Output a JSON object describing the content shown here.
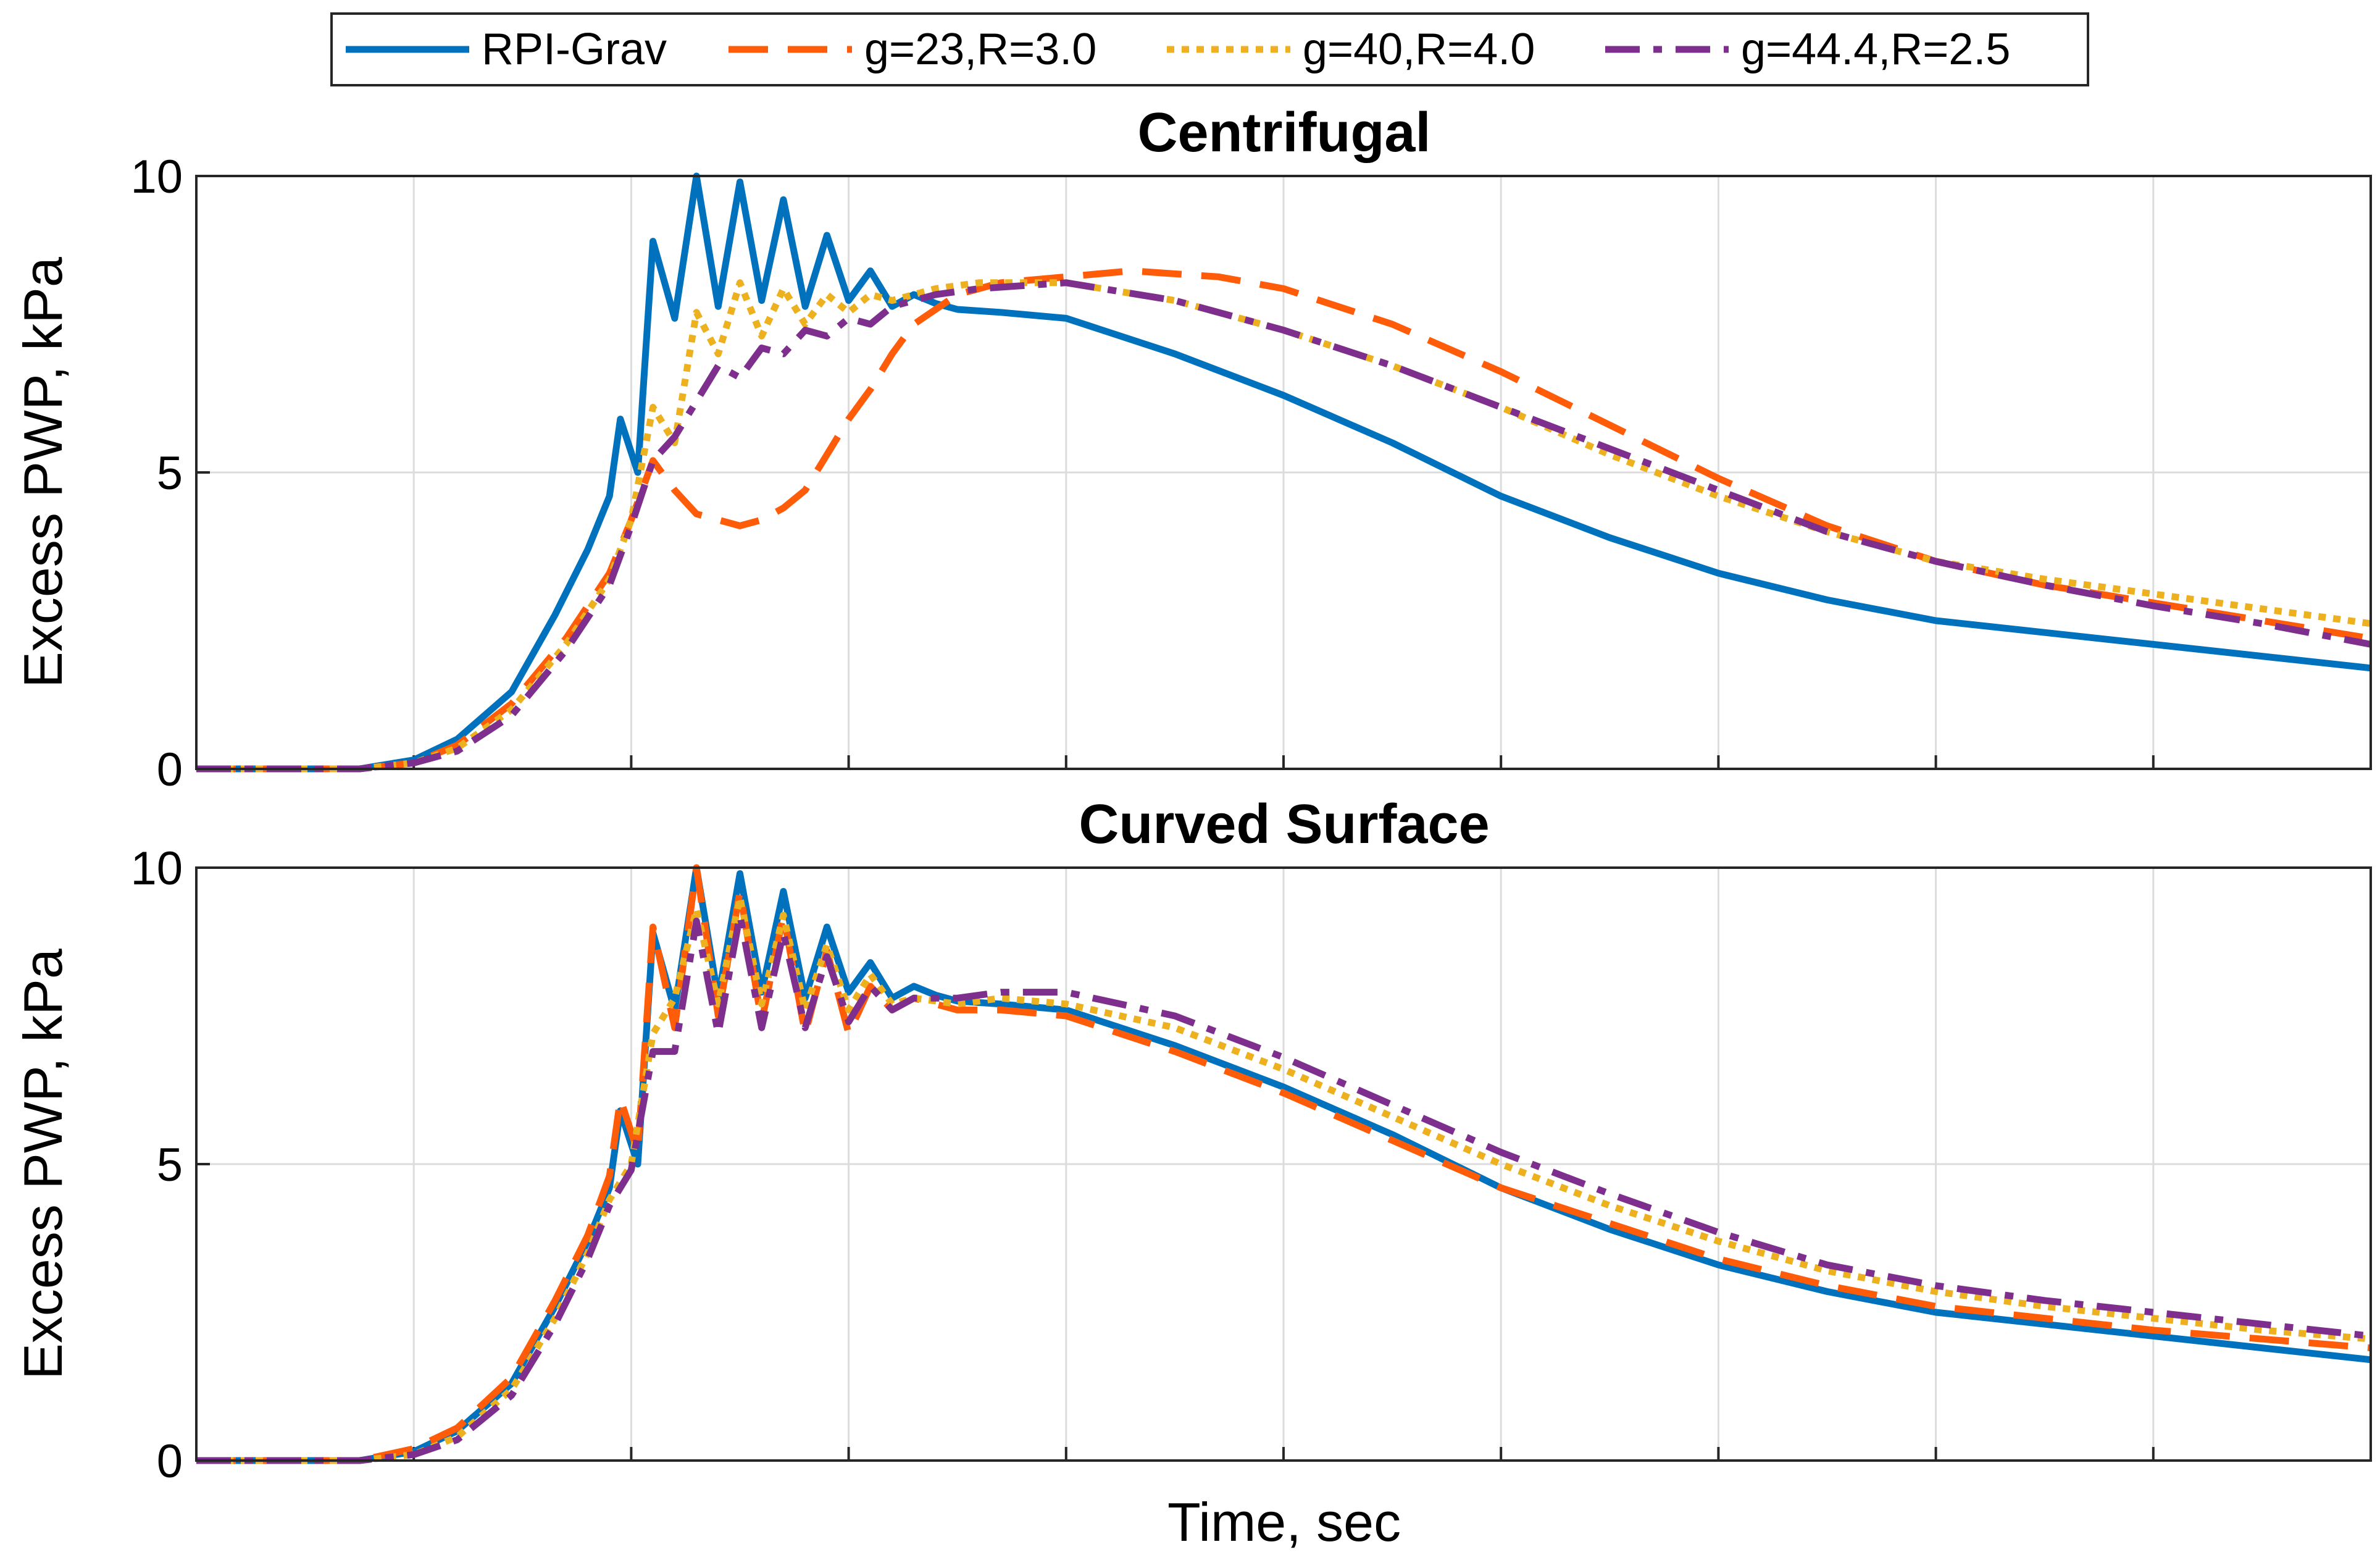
{
  "chart_data": [
    {
      "type": "line",
      "title": "Centrifugal",
      "xlabel": "",
      "ylabel": "Excess PWP, kPa",
      "xlim": [
        0,
        10
      ],
      "ylim": [
        0,
        10
      ],
      "xticks": [
        1,
        2,
        3,
        4,
        5,
        6,
        7,
        8,
        9
      ],
      "yticks": [
        {
          "value": 0,
          "label": "0"
        },
        {
          "value": 5,
          "label": "5"
        },
        {
          "value": 10,
          "label": "10"
        }
      ],
      "grid": true,
      "series": [
        {
          "name": "RPI-Grav",
          "color": "#0072BD",
          "dash": "solid",
          "x": [
            0,
            0.75,
            1.0,
            1.2,
            1.45,
            1.65,
            1.8,
            1.9,
            1.95,
            2.03,
            2.1,
            2.2,
            2.3,
            2.4,
            2.5,
            2.6,
            2.7,
            2.8,
            2.9,
            3.0,
            3.1,
            3.2,
            3.3,
            3.4,
            3.5,
            3.7,
            4.0,
            4.5,
            5.0,
            5.5,
            6.0,
            6.5,
            7.0,
            7.5,
            8.0,
            8.5,
            9.0,
            9.5,
            10.0
          ],
          "y": [
            0,
            0,
            0.15,
            0.5,
            1.3,
            2.6,
            3.7,
            4.6,
            5.9,
            5.0,
            8.9,
            7.6,
            10.0,
            7.8,
            9.9,
            7.9,
            9.6,
            7.8,
            9.0,
            7.9,
            8.4,
            7.8,
            8.0,
            7.85,
            7.75,
            7.7,
            7.6,
            7.0,
            6.3,
            5.5,
            4.6,
            3.9,
            3.3,
            2.85,
            2.5,
            2.3,
            2.1,
            1.9,
            1.7
          ]
        },
        {
          "name": "g=23,R=3.0",
          "color": "#FF5C0A",
          "dash": "long-dash",
          "x": [
            0,
            0.75,
            1.0,
            1.2,
            1.45,
            1.7,
            1.9,
            2.0,
            2.1,
            2.2,
            2.3,
            2.4,
            2.5,
            2.6,
            2.7,
            2.8,
            2.9,
            3.0,
            3.1,
            3.2,
            3.3,
            3.5,
            3.7,
            4.0,
            4.3,
            4.7,
            5.0,
            5.5,
            6.0,
            6.5,
            7.0,
            7.5,
            8.0,
            8.5,
            9.0,
            9.5,
            10.0
          ],
          "y": [
            0,
            0,
            0.1,
            0.4,
            1.1,
            2.2,
            3.3,
            4.2,
            5.2,
            4.7,
            4.3,
            4.2,
            4.1,
            4.2,
            4.4,
            4.7,
            5.3,
            5.9,
            6.4,
            7.0,
            7.5,
            8.0,
            8.2,
            8.3,
            8.4,
            8.3,
            8.1,
            7.5,
            6.7,
            5.8,
            4.9,
            4.1,
            3.5,
            3.1,
            2.8,
            2.5,
            2.2
          ]
        },
        {
          "name": "g=40,R=4.0",
          "color": "#EDB120",
          "dash": "dotted",
          "x": [
            0,
            0.75,
            1.0,
            1.2,
            1.45,
            1.7,
            1.9,
            2.0,
            2.1,
            2.2,
            2.3,
            2.4,
            2.5,
            2.6,
            2.7,
            2.8,
            2.9,
            3.0,
            3.1,
            3.2,
            3.4,
            3.6,
            4.0,
            4.5,
            5.0,
            5.5,
            6.0,
            6.5,
            7.0,
            7.5,
            8.0,
            8.5,
            9.0,
            9.5,
            10.0
          ],
          "y": [
            0,
            0,
            0.1,
            0.35,
            1.0,
            2.1,
            3.2,
            4.2,
            6.1,
            5.5,
            7.7,
            7.0,
            8.2,
            7.3,
            8.1,
            7.5,
            8.0,
            7.7,
            8.0,
            7.9,
            8.1,
            8.2,
            8.2,
            7.9,
            7.4,
            6.8,
            6.1,
            5.3,
            4.6,
            4.0,
            3.5,
            3.2,
            2.95,
            2.7,
            2.45
          ]
        },
        {
          "name": "g=44.4,R=2.5",
          "color": "#7E2F8E",
          "dash": "dash-dot",
          "x": [
            0,
            0.75,
            1.0,
            1.2,
            1.45,
            1.7,
            1.9,
            2.0,
            2.1,
            2.2,
            2.3,
            2.4,
            2.5,
            2.6,
            2.7,
            2.8,
            2.9,
            3.0,
            3.1,
            3.2,
            3.4,
            3.6,
            4.0,
            4.5,
            5.0,
            5.5,
            6.0,
            6.5,
            7.0,
            7.5,
            8.0,
            8.5,
            9.0,
            9.5,
            10.0
          ],
          "y": [
            0,
            0,
            0.1,
            0.3,
            0.9,
            2.0,
            3.1,
            4.1,
            5.2,
            5.6,
            6.2,
            6.8,
            6.6,
            7.1,
            7.0,
            7.4,
            7.3,
            7.6,
            7.5,
            7.8,
            8.0,
            8.1,
            8.2,
            7.9,
            7.4,
            6.8,
            6.1,
            5.4,
            4.7,
            4.0,
            3.5,
            3.1,
            2.75,
            2.45,
            2.1
          ]
        }
      ]
    },
    {
      "type": "line",
      "title": "Curved Surface",
      "xlabel": "Time, sec",
      "ylabel": "Excess PWP, kPa",
      "xlim": [
        0,
        10
      ],
      "ylim": [
        0,
        10
      ],
      "xticks": [
        1,
        2,
        3,
        4,
        5,
        6,
        7,
        8,
        9
      ],
      "yticks": [
        {
          "value": 0,
          "label": "0"
        },
        {
          "value": 5,
          "label": "5"
        },
        {
          "value": 10,
          "label": "10"
        }
      ],
      "grid": true,
      "series": [
        {
          "name": "RPI-Grav",
          "color": "#0072BD",
          "dash": "solid",
          "x": [
            0,
            0.75,
            1.0,
            1.2,
            1.45,
            1.65,
            1.8,
            1.9,
            1.95,
            2.03,
            2.1,
            2.2,
            2.3,
            2.4,
            2.5,
            2.6,
            2.7,
            2.8,
            2.9,
            3.0,
            3.1,
            3.2,
            3.3,
            3.4,
            3.5,
            3.7,
            4.0,
            4.5,
            5.0,
            5.5,
            6.0,
            6.5,
            7.0,
            7.5,
            8.0,
            8.5,
            9.0,
            9.5,
            10.0
          ],
          "y": [
            0,
            0,
            0.15,
            0.5,
            1.3,
            2.6,
            3.7,
            4.6,
            5.9,
            5.0,
            8.9,
            7.6,
            10.0,
            7.8,
            9.9,
            7.9,
            9.6,
            7.8,
            9.0,
            7.9,
            8.4,
            7.8,
            8.0,
            7.85,
            7.75,
            7.7,
            7.6,
            7.0,
            6.3,
            5.5,
            4.6,
            3.9,
            3.3,
            2.85,
            2.5,
            2.3,
            2.1,
            1.9,
            1.7
          ]
        },
        {
          "name": "g=23,R=3.0",
          "color": "#FF5C0A",
          "dash": "long-dash",
          "x": [
            0,
            0.75,
            1.0,
            1.2,
            1.45,
            1.65,
            1.8,
            1.9,
            1.95,
            2.03,
            2.1,
            2.2,
            2.3,
            2.4,
            2.5,
            2.6,
            2.7,
            2.8,
            2.9,
            3.0,
            3.1,
            3.2,
            3.3,
            3.5,
            3.7,
            4.0,
            4.5,
            5.0,
            5.5,
            6.0,
            6.5,
            7.0,
            7.5,
            8.0,
            8.5,
            9.0,
            9.5,
            10.0
          ],
          "y": [
            0,
            0,
            0.2,
            0.55,
            1.4,
            2.7,
            3.8,
            4.8,
            6.1,
            5.2,
            9.0,
            7.3,
            10.0,
            7.5,
            9.6,
            7.4,
            9.2,
            7.2,
            8.6,
            7.2,
            8.0,
            7.6,
            7.8,
            7.6,
            7.6,
            7.5,
            6.9,
            6.2,
            5.4,
            4.6,
            4.0,
            3.4,
            2.95,
            2.6,
            2.4,
            2.2,
            2.05,
            1.9
          ]
        },
        {
          "name": "g=40,R=4.0",
          "color": "#EDB120",
          "dash": "dotted",
          "x": [
            0,
            0.75,
            1.0,
            1.2,
            1.45,
            1.65,
            1.8,
            1.9,
            2.0,
            2.1,
            2.2,
            2.3,
            2.4,
            2.5,
            2.6,
            2.7,
            2.8,
            2.9,
            3.0,
            3.1,
            3.2,
            3.3,
            3.5,
            3.7,
            4.0,
            4.5,
            5.0,
            5.5,
            6.0,
            6.5,
            7.0,
            7.5,
            8.0,
            8.5,
            9.0,
            9.5,
            10.0
          ],
          "y": [
            0,
            0,
            0.1,
            0.4,
            1.2,
            2.4,
            3.5,
            4.4,
            5.0,
            7.2,
            7.8,
            9.3,
            7.7,
            9.5,
            7.7,
            9.2,
            7.6,
            8.7,
            7.6,
            8.2,
            7.7,
            7.8,
            7.7,
            7.8,
            7.7,
            7.3,
            6.6,
            5.8,
            5.0,
            4.3,
            3.7,
            3.2,
            2.85,
            2.6,
            2.4,
            2.2,
            2.05
          ]
        },
        {
          "name": "g=44.4,R=2.5",
          "color": "#7E2F8E",
          "dash": "dash-dot",
          "x": [
            0,
            0.75,
            1.0,
            1.2,
            1.45,
            1.65,
            1.8,
            1.9,
            2.0,
            2.1,
            2.2,
            2.3,
            2.4,
            2.5,
            2.6,
            2.7,
            2.8,
            2.9,
            3.0,
            3.1,
            3.2,
            3.3,
            3.5,
            3.7,
            4.0,
            4.5,
            5.0,
            5.5,
            6.0,
            6.5,
            7.0,
            7.5,
            8.0,
            8.5,
            9.0,
            9.5,
            10.0
          ],
          "y": [
            0,
            0,
            0.1,
            0.35,
            1.1,
            2.3,
            3.4,
            4.3,
            4.9,
            6.9,
            6.9,
            9.1,
            7.2,
            9.2,
            7.3,
            8.9,
            7.3,
            8.5,
            7.4,
            8.0,
            7.6,
            7.8,
            7.8,
            7.9,
            7.9,
            7.5,
            6.8,
            6.0,
            5.2,
            4.5,
            3.85,
            3.3,
            2.95,
            2.7,
            2.5,
            2.3,
            2.1
          ]
        }
      ]
    }
  ],
  "legend": {
    "placement": "top",
    "items": [
      {
        "label": "RPI-Grav",
        "color": "#0072BD",
        "dash": "solid"
      },
      {
        "label": "g=23,R=3.0",
        "color": "#FF5C0A",
        "dash": "long-dash"
      },
      {
        "label": "g=40,R=4.0",
        "color": "#EDB120",
        "dash": "dotted"
      },
      {
        "label": "g=44.4,R=2.5",
        "color": "#7E2F8E",
        "dash": "dash-dot"
      }
    ]
  }
}
